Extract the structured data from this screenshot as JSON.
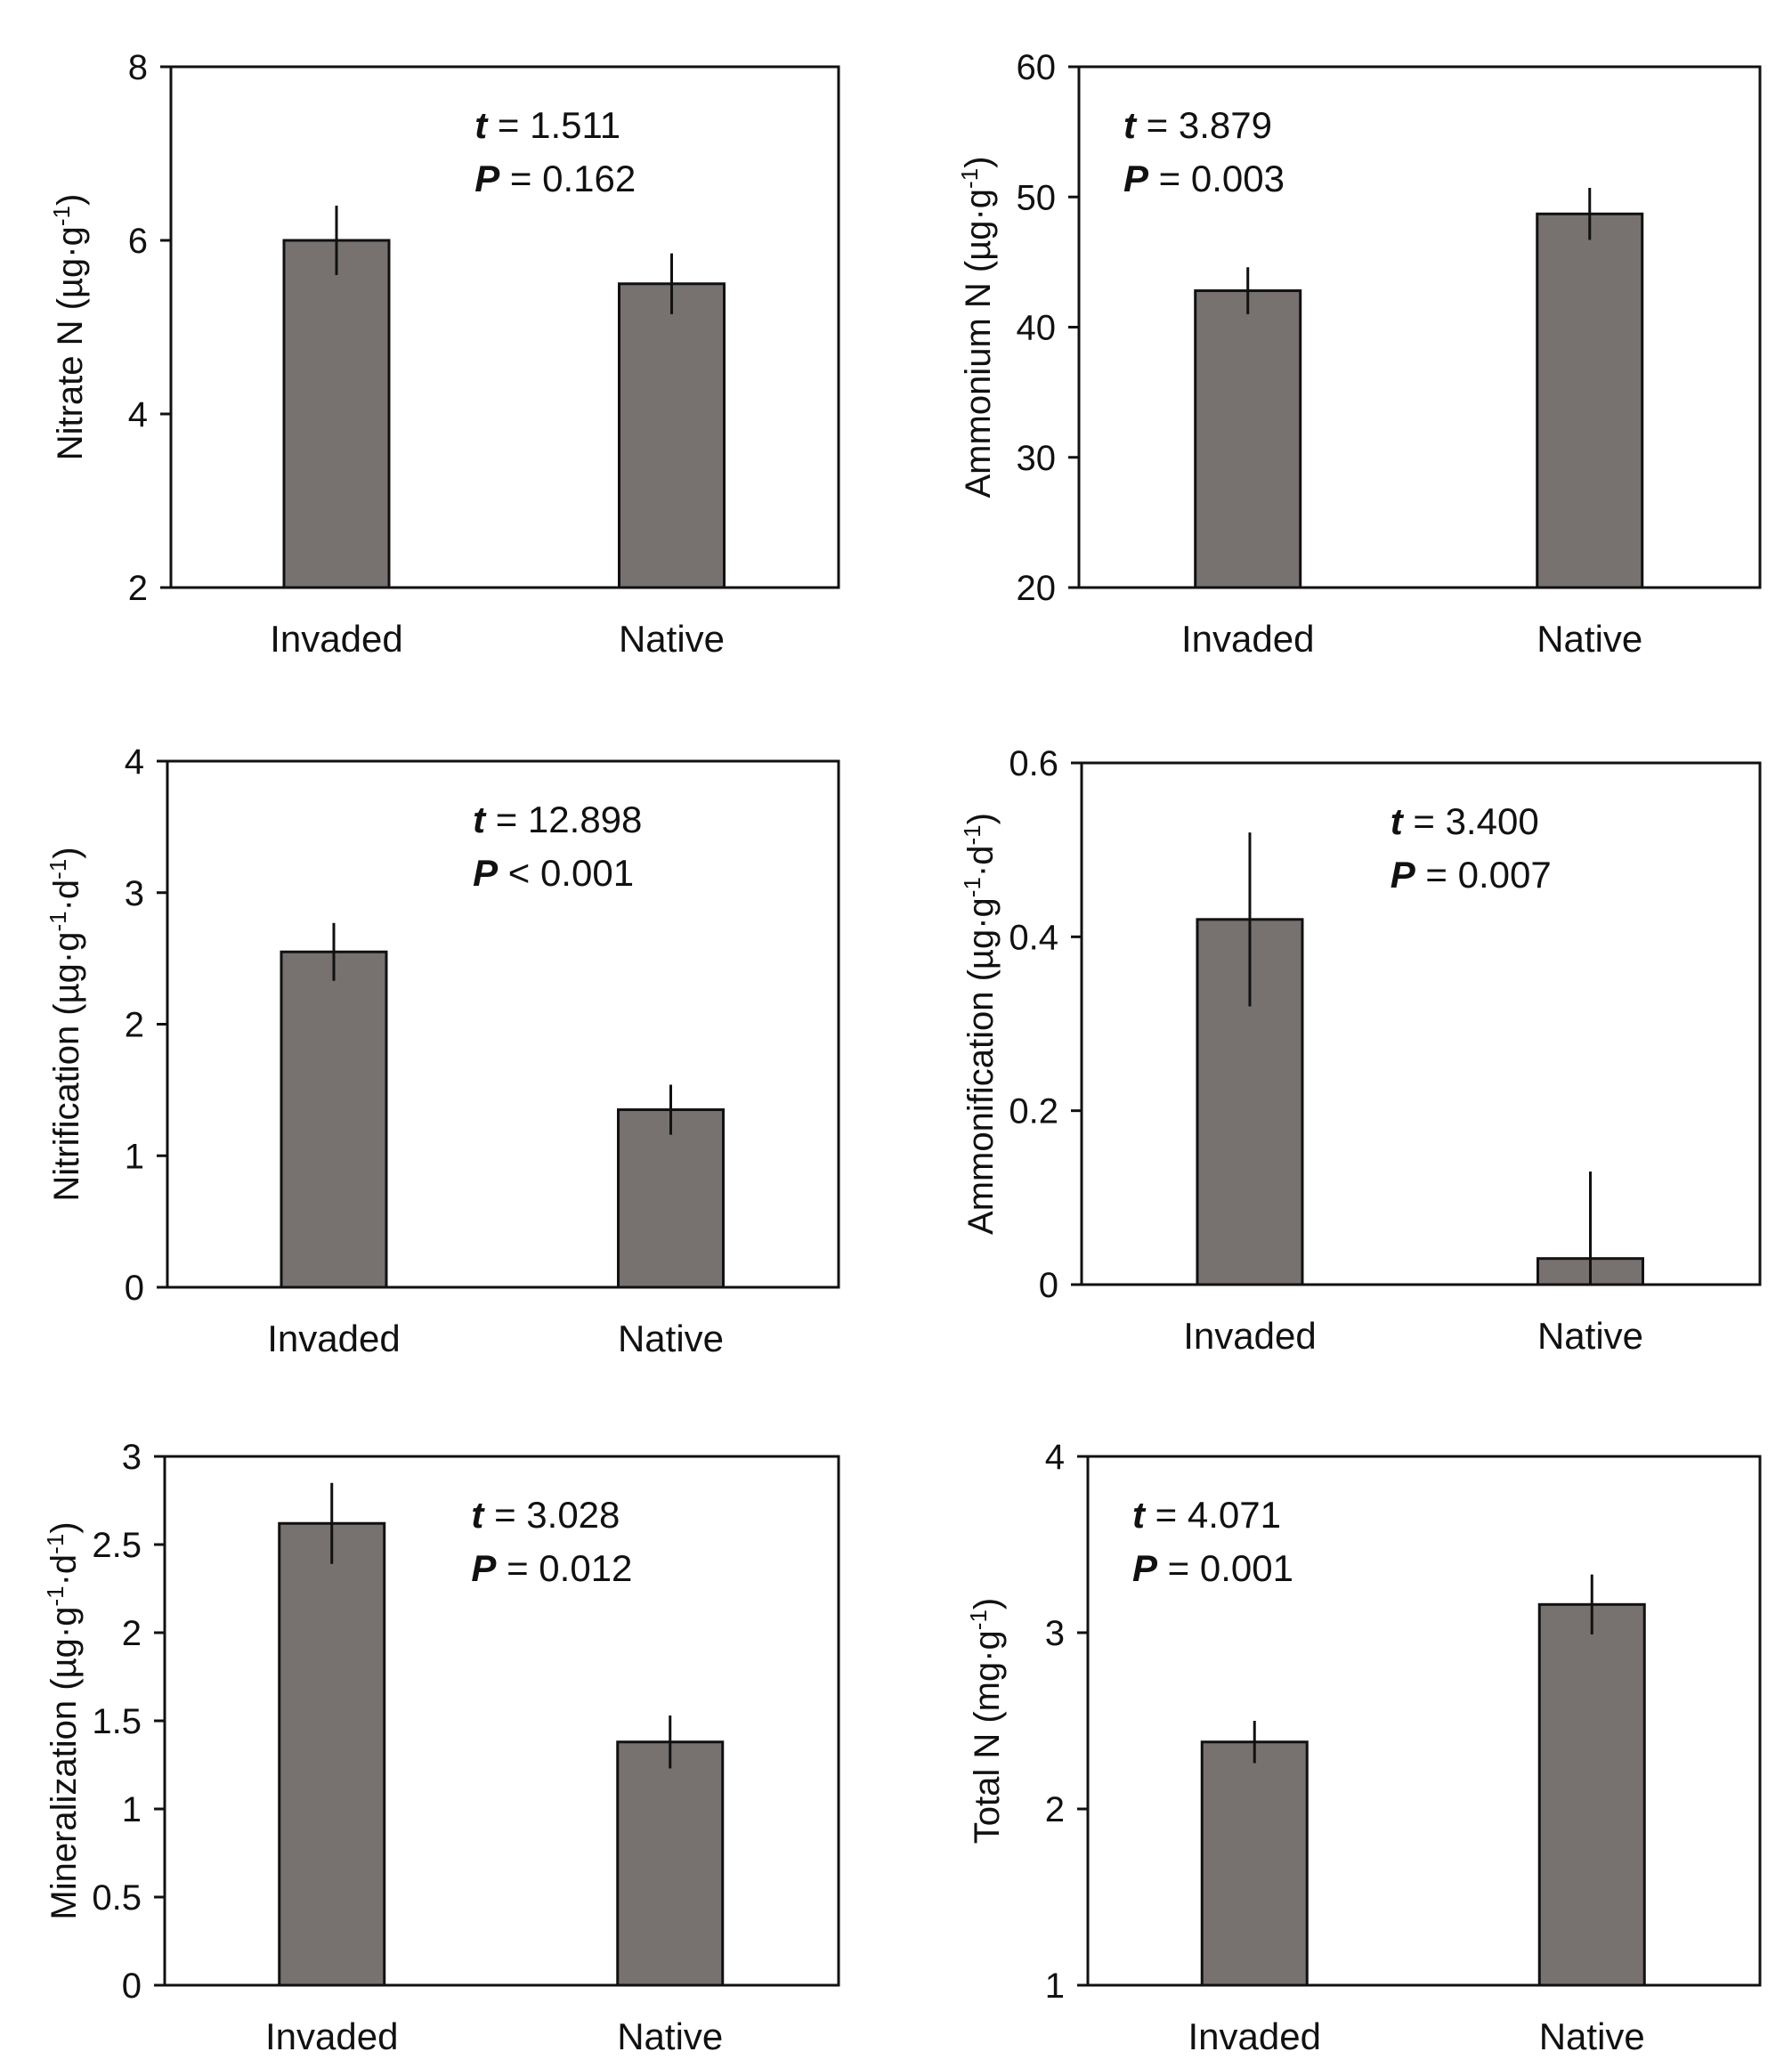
{
  "colors": {
    "bar": "#777170",
    "axis": "#111111",
    "background": "#ffffff"
  },
  "chart_data": [
    {
      "type": "bar",
      "categories": [
        "Invaded",
        "Native"
      ],
      "values": [
        6.0,
        5.5
      ],
      "errors": [
        0.4,
        0.35
      ],
      "ylabel": "Nitrate N (µg·g",
      "ylabel_sup1": "-1",
      "ylabel_tail": ")",
      "ylim": [
        2,
        8
      ],
      "yticks": [
        2,
        4,
        6,
        8
      ],
      "ytick_labels": [
        "2",
        "4",
        "6",
        "8"
      ],
      "annotation": {
        "t_label": "t",
        "t_value": " = 1.511",
        "p_label": "P",
        "p_value": " = 0.162",
        "position": "top-right"
      }
    },
    {
      "type": "bar",
      "categories": [
        "Invaded",
        "Native"
      ],
      "values": [
        42.8,
        48.7
      ],
      "errors": [
        1.8,
        2.0
      ],
      "ylabel": "Ammonium N (µg·g",
      "ylabel_sup1": "-1",
      "ylabel_tail": ")",
      "ylim": [
        20,
        60
      ],
      "yticks": [
        20,
        30,
        40,
        50,
        60
      ],
      "ytick_labels": [
        "20",
        "30",
        "40",
        "50",
        "60"
      ],
      "annotation": {
        "t_label": "t",
        "t_value": " = 3.879",
        "p_label": "P",
        "p_value": " = 0.003",
        "position": "top-left"
      }
    },
    {
      "type": "bar",
      "categories": [
        "Invaded",
        "Native"
      ],
      "values": [
        2.55,
        1.35
      ],
      "errors": [
        0.22,
        0.19
      ],
      "ylabel": "Nitrification (µg·g",
      "ylabel_sup1": "-1",
      "ylabel_mid": "·d",
      "ylabel_sup2": "-1",
      "ylabel_tail": ")",
      "ylim": [
        0,
        4
      ],
      "yticks": [
        0,
        1,
        2,
        3,
        4
      ],
      "ytick_labels": [
        "0",
        "1",
        "2",
        "3",
        "4"
      ],
      "annotation": {
        "t_label": "t",
        "t_value": " = 12.898",
        "p_label": "P",
        "p_value": " < 0.001",
        "position": "top-right"
      }
    },
    {
      "type": "bar",
      "categories": [
        "Invaded",
        "Native"
      ],
      "values": [
        0.42,
        0.03
      ],
      "errors": [
        0.1,
        0.1
      ],
      "ylabel": "Ammonification (µg·g",
      "ylabel_sup1": "-1",
      "ylabel_mid": "·d",
      "ylabel_sup2": "-1",
      "ylabel_tail": ")",
      "ylim": [
        0,
        0.6
      ],
      "yticks": [
        0,
        0.2,
        0.4,
        0.6
      ],
      "ytick_labels": [
        "0",
        "0.2",
        "0.4",
        "0.6"
      ],
      "annotation": {
        "t_label": "t",
        "t_value": " = 3.400",
        "p_label": "P",
        "p_value": " = 0.007",
        "position": "top-right"
      }
    },
    {
      "type": "bar",
      "categories": [
        "Invaded",
        "Native"
      ],
      "values": [
        2.62,
        1.38
      ],
      "errors": [
        0.23,
        0.15
      ],
      "ylabel": "Mineralization (µg·g",
      "ylabel_sup1": "-1",
      "ylabel_mid": "·d",
      "ylabel_sup2": "-1",
      "ylabel_tail": ")",
      "ylim": [
        0,
        3
      ],
      "yticks": [
        0,
        0.5,
        1,
        1.5,
        2,
        2.5,
        3
      ],
      "ytick_labels": [
        "0",
        "0.5",
        "1",
        "1.5",
        "2",
        "2.5",
        "3"
      ],
      "annotation": {
        "t_label": "t",
        "t_value": " = 3.028",
        "p_label": "P",
        "p_value": " = 0.012",
        "position": "top-right"
      }
    },
    {
      "type": "bar",
      "categories": [
        "Invaded",
        "Native"
      ],
      "values": [
        2.38,
        3.16
      ],
      "errors": [
        0.12,
        0.17
      ],
      "ylabel": "Total N (mg·g",
      "ylabel_sup1": "-1",
      "ylabel_tail": ")",
      "ylim": [
        1,
        4
      ],
      "yticks": [
        1,
        2,
        3,
        4
      ],
      "ytick_labels": [
        "1",
        "2",
        "3",
        "4"
      ],
      "annotation": {
        "t_label": "t",
        "t_value": " = 4.071",
        "p_label": "P",
        "p_value": " = 0.001",
        "position": "top-left"
      }
    }
  ]
}
